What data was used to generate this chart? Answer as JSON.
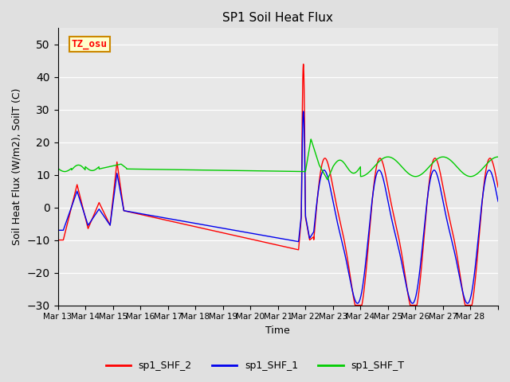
{
  "title": "SP1 Soil Heat Flux",
  "xlabel": "Time",
  "ylabel": "Soil Heat Flux (W/m2), SoilT (C)",
  "ylim": [
    -30,
    55
  ],
  "yticks": [
    -30,
    -20,
    -10,
    0,
    10,
    20,
    30,
    40,
    50
  ],
  "annotation_text": "TZ_osu",
  "colors": {
    "sp1_SHF_2": "#ff0000",
    "sp1_SHF_1": "#0000ee",
    "sp1_SHF_T": "#00cc00"
  },
  "bg_color": "#e8e8e8",
  "fig_bg_color": "#e0e0e0",
  "x_tick_labels": [
    "Mar 13",
    "Mar 14",
    "Mar 15",
    "Mar 16",
    "Mar 17",
    "Mar 18",
    "Mar 19",
    "Mar 20",
    "Mar 21",
    "Mar 22",
    "Mar 23",
    "Mar 24",
    "Mar 25",
    "Mar 26",
    "Mar 27",
    "Mar 28"
  ],
  "n_days": 16
}
